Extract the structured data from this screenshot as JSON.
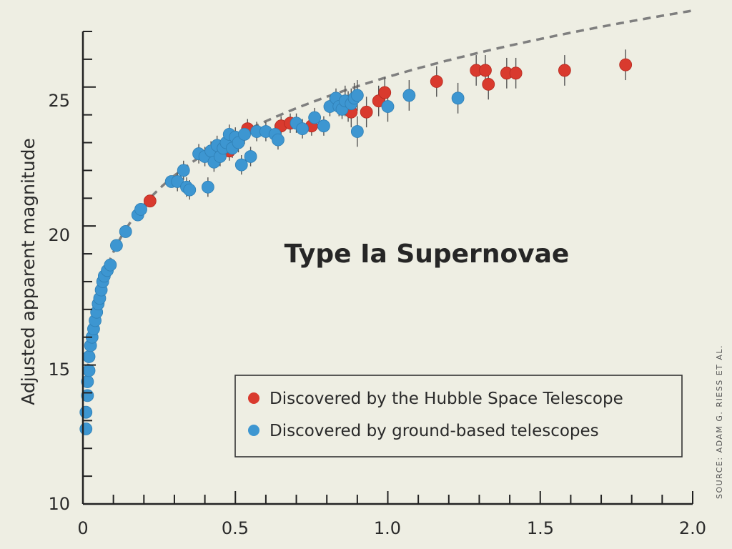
{
  "chart_data": {
    "type": "scatter",
    "title": "Type Ia Supernovae",
    "xlabel": "",
    "ylabel": "Adjusted apparent magnitude",
    "xlim": [
      0,
      2.0
    ],
    "ylim": [
      10,
      27
    ],
    "x_ticks": [
      "0",
      "0.5",
      "1.0",
      "1.5",
      "2.0"
    ],
    "y_ticks": [
      "10",
      "15",
      "20",
      "25"
    ],
    "grid": false,
    "legend_position": "lower-right",
    "trend_line": {
      "style": "dashed",
      "color": "#808080"
    },
    "series": [
      {
        "name": "Discovered by the Hubble Space Telescope",
        "color": "#d93a2e",
        "points": [
          [
            0.22,
            20.9
          ],
          [
            0.48,
            22.7
          ],
          [
            0.54,
            23.5
          ],
          [
            0.65,
            23.6
          ],
          [
            0.68,
            23.7
          ],
          [
            0.75,
            23.6
          ],
          [
            0.87,
            24.3
          ],
          [
            0.88,
            24.1
          ],
          [
            0.93,
            24.1
          ],
          [
            0.97,
            24.5
          ],
          [
            0.99,
            24.8
          ],
          [
            1.16,
            25.2
          ],
          [
            1.29,
            25.6
          ],
          [
            1.32,
            25.6
          ],
          [
            1.33,
            25.1
          ],
          [
            1.39,
            25.5
          ],
          [
            1.42,
            25.5
          ],
          [
            1.58,
            25.6
          ],
          [
            1.78,
            25.8
          ]
        ]
      },
      {
        "name": "Discovered by ground-based telescopes",
        "color": "#3d96d1",
        "points": [
          [
            0.01,
            12.7
          ],
          [
            0.01,
            13.3
          ],
          [
            0.015,
            13.9
          ],
          [
            0.015,
            14.4
          ],
          [
            0.02,
            14.8
          ],
          [
            0.02,
            15.3
          ],
          [
            0.025,
            15.7
          ],
          [
            0.03,
            16.0
          ],
          [
            0.035,
            16.3
          ],
          [
            0.04,
            16.6
          ],
          [
            0.045,
            16.9
          ],
          [
            0.05,
            17.2
          ],
          [
            0.055,
            17.4
          ],
          [
            0.06,
            17.7
          ],
          [
            0.065,
            18.0
          ],
          [
            0.07,
            18.2
          ],
          [
            0.08,
            18.4
          ],
          [
            0.09,
            18.6
          ],
          [
            0.11,
            19.3
          ],
          [
            0.14,
            19.8
          ],
          [
            0.18,
            20.4
          ],
          [
            0.19,
            20.6
          ],
          [
            0.29,
            21.6
          ],
          [
            0.31,
            21.6
          ],
          [
            0.33,
            22.0
          ],
          [
            0.34,
            21.4
          ],
          [
            0.35,
            21.3
          ],
          [
            0.38,
            22.6
          ],
          [
            0.4,
            22.5
          ],
          [
            0.41,
            21.4
          ],
          [
            0.42,
            22.7
          ],
          [
            0.43,
            22.3
          ],
          [
            0.44,
            22.9
          ],
          [
            0.45,
            22.5
          ],
          [
            0.46,
            22.8
          ],
          [
            0.47,
            23.0
          ],
          [
            0.48,
            23.3
          ],
          [
            0.49,
            22.8
          ],
          [
            0.5,
            23.2
          ],
          [
            0.51,
            23.0
          ],
          [
            0.52,
            22.2
          ],
          [
            0.53,
            23.3
          ],
          [
            0.55,
            22.5
          ],
          [
            0.57,
            23.4
          ],
          [
            0.6,
            23.4
          ],
          [
            0.63,
            23.3
          ],
          [
            0.64,
            23.1
          ],
          [
            0.7,
            23.7
          ],
          [
            0.72,
            23.5
          ],
          [
            0.76,
            23.9
          ],
          [
            0.79,
            23.6
          ],
          [
            0.81,
            24.3
          ],
          [
            0.83,
            24.6
          ],
          [
            0.84,
            24.3
          ],
          [
            0.85,
            24.2
          ],
          [
            0.86,
            24.5
          ],
          [
            0.88,
            24.4
          ],
          [
            0.89,
            24.6
          ],
          [
            0.9,
            24.7
          ],
          [
            0.9,
            23.4
          ],
          [
            1.0,
            24.3
          ],
          [
            1.07,
            24.7
          ],
          [
            1.23,
            24.6
          ]
        ]
      }
    ]
  },
  "credit": "SOURCE: ADAM G. RIESS ET AL."
}
